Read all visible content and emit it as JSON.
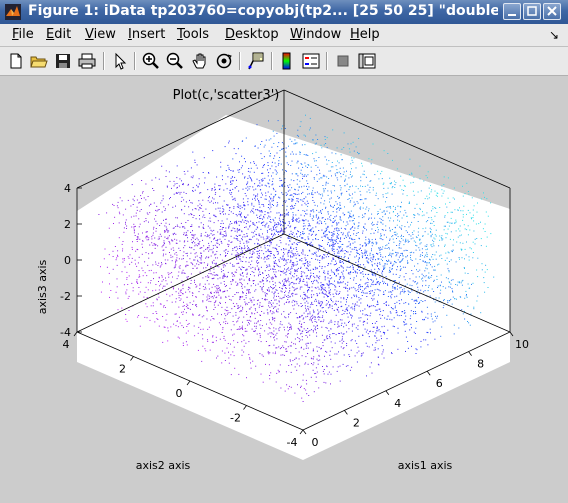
{
  "window": {
    "title": "Figure 1: iData tp203760=copyobj(tp2... [25  50  25] \"double (",
    "buttons": [
      "minimize",
      "maximize",
      "close"
    ]
  },
  "menubar": {
    "items": [
      {
        "label": "File",
        "mnemonic": "F"
      },
      {
        "label": "Edit",
        "mnemonic": "E"
      },
      {
        "label": "View",
        "mnemonic": "V"
      },
      {
        "label": "Insert",
        "mnemonic": "I"
      },
      {
        "label": "Tools",
        "mnemonic": "T"
      },
      {
        "label": "Desktop",
        "mnemonic": "D"
      },
      {
        "label": "Window",
        "mnemonic": "W"
      },
      {
        "label": "Help",
        "mnemonic": "H"
      }
    ],
    "dock_glyph": "↘"
  },
  "toolbar": {
    "icons": [
      "new-file-icon",
      "open-folder-icon",
      "save-icon",
      "print-icon",
      "select-arrow-icon",
      "zoom-in-icon",
      "zoom-out-icon",
      "pan-hand-icon",
      "rotate3d-icon",
      "data-cursor-icon",
      "colorbar-icon",
      "legend-icon",
      "hide-plot-tools-icon",
      "show-plot-tools-icon"
    ]
  },
  "chart_data": {
    "type": "scatter",
    "title": "Plot(c,'scatter3')",
    "xlabel": "axis1 axis",
    "ylabel": "axis2 axis",
    "zlabel": "axis3 axis",
    "xlim": [
      0,
      10
    ],
    "ylim": [
      -4,
      4
    ],
    "zlim": [
      -4,
      4
    ],
    "xticks": [
      "0",
      "2",
      "4",
      "6",
      "8",
      "10"
    ],
    "yticks": [
      "-4",
      "-2",
      "0",
      "2",
      "4"
    ],
    "zticks": [
      "-4",
      "-2",
      "0",
      "2",
      "4"
    ],
    "grid": "3d",
    "colors": {
      "cyan": "#2ee0e8",
      "blue": "#2030ff",
      "purple": "#8020e0",
      "magenta": "#d020ff"
    }
  }
}
